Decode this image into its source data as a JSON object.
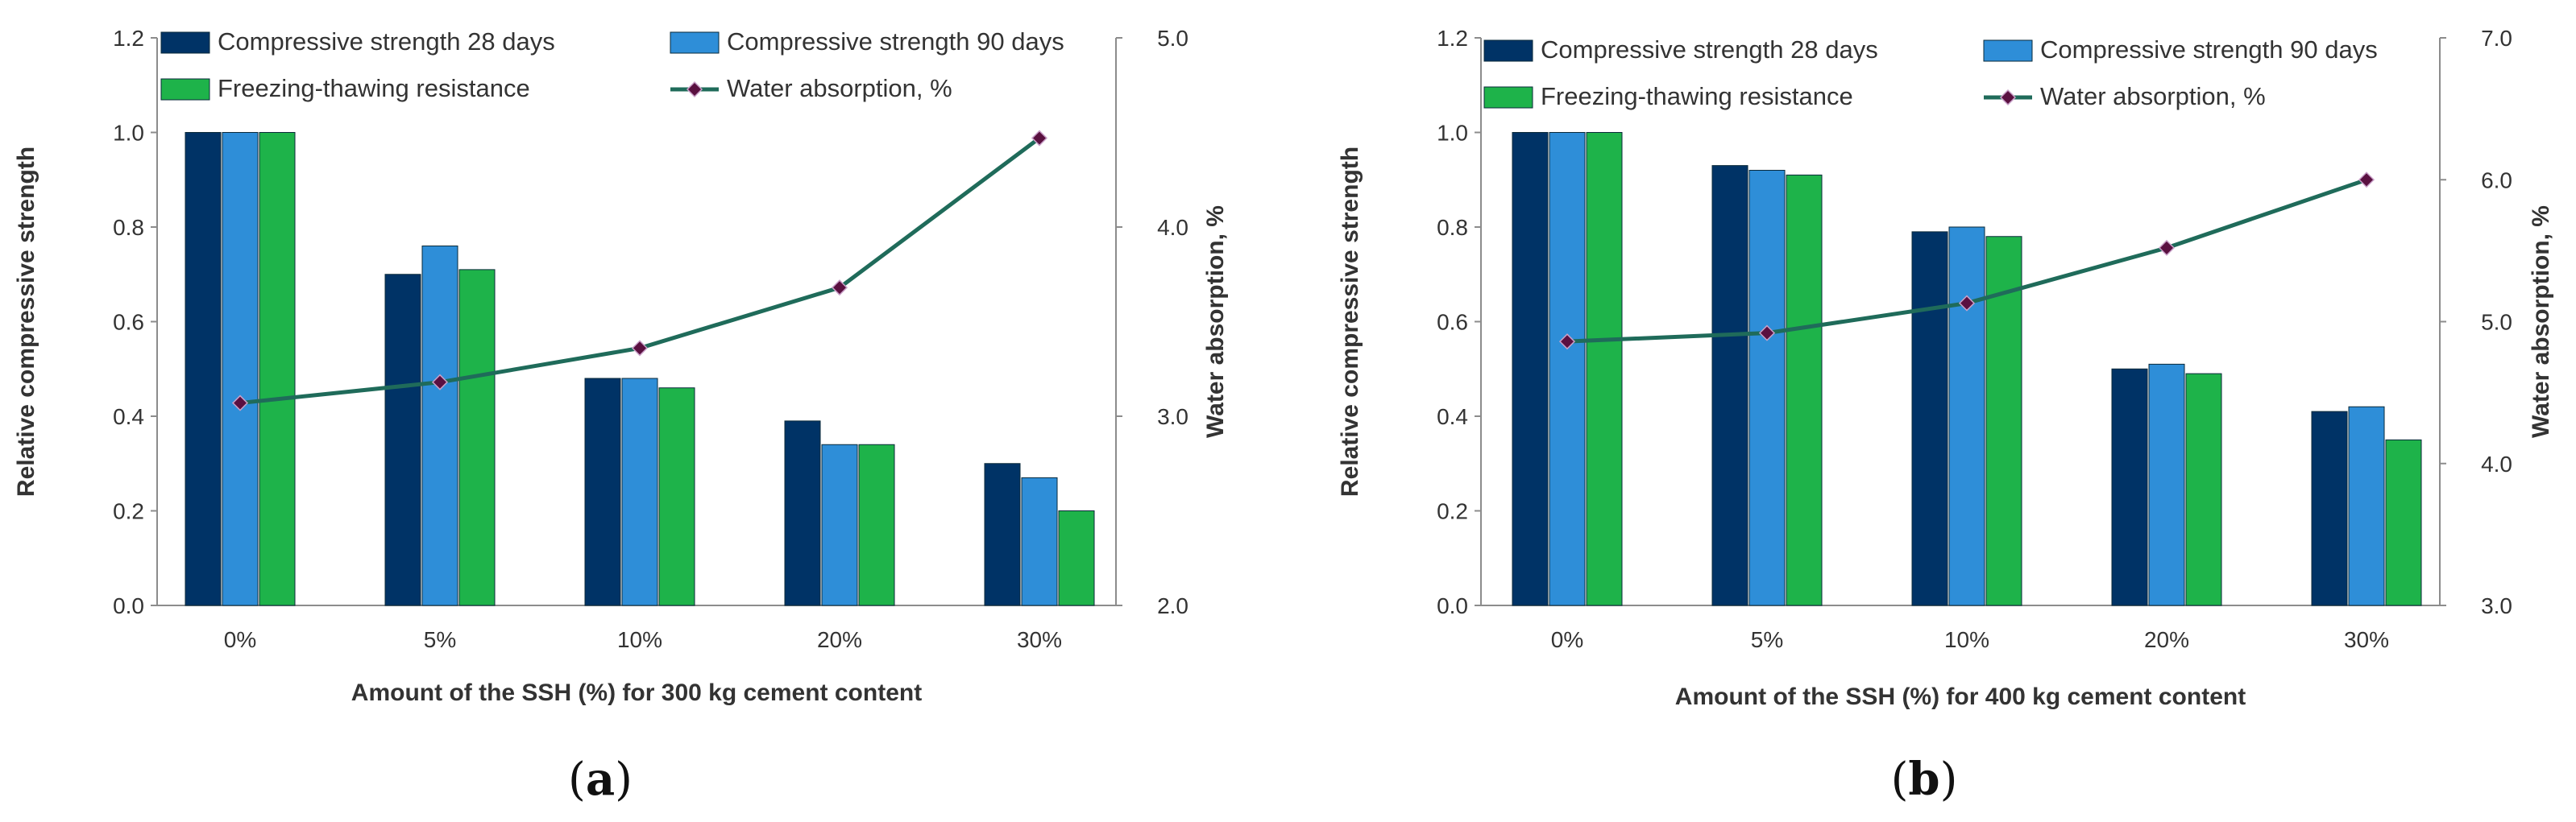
{
  "colors": {
    "cs28": "#003366",
    "cs90": "#2E8ED8",
    "ft": "#1EB34A",
    "water_line": "#1F6B5A",
    "water_marker": "#5A1040"
  },
  "chart_data": [
    {
      "type": "bar",
      "panel_label": "a",
      "categories": [
        "0%",
        "5%",
        "10%",
        "20%",
        "30%"
      ],
      "xlabel": "Amount of the SSH (%) for 300 kg cement content",
      "ylabel": "Relative compressive strength",
      "ylim": [
        0,
        1.2
      ],
      "yticks": [
        "0.0",
        "0.2",
        "0.4",
        "0.6",
        "0.8",
        "1.0",
        "1.2"
      ],
      "y2label": "Water absorption, %",
      "y2lim": [
        2.0,
        5.0
      ],
      "y2ticks": [
        "2.0",
        "3.0",
        "4.0",
        "5.0"
      ],
      "grid": false,
      "legend_position": "top",
      "series": [
        {
          "name": "Compressive strength 28 days",
          "kind": "bar",
          "axis": "left",
          "values": [
            1.0,
            0.7,
            0.48,
            0.39,
            0.3
          ]
        },
        {
          "name": "Compressive strength 90 days",
          "kind": "bar",
          "axis": "left",
          "values": [
            1.0,
            0.76,
            0.48,
            0.34,
            0.27
          ]
        },
        {
          "name": "Freezing-thawing resistance",
          "kind": "bar",
          "axis": "left",
          "values": [
            1.0,
            0.71,
            0.46,
            0.34,
            0.2
          ]
        },
        {
          "name": "Water absorption, %",
          "kind": "line",
          "axis": "right",
          "values": [
            3.07,
            3.18,
            3.36,
            3.68,
            4.47
          ]
        }
      ]
    },
    {
      "type": "bar",
      "panel_label": "b",
      "categories": [
        "0%",
        "5%",
        "10%",
        "20%",
        "30%"
      ],
      "xlabel": "Amount of the SSH (%) for 400 kg cement content",
      "ylabel": "Relative compressive strength",
      "ylim": [
        0,
        1.2
      ],
      "yticks": [
        "0.0",
        "0.2",
        "0.4",
        "0.6",
        "0.8",
        "1.0",
        "1.2"
      ],
      "y2label": "Water absorption, %",
      "y2lim": [
        3.0,
        7.0
      ],
      "y2ticks": [
        "3.0",
        "4.0",
        "5.0",
        "6.0",
        "7.0"
      ],
      "grid": false,
      "legend_position": "top",
      "series": [
        {
          "name": "Compressive strength 28 days",
          "kind": "bar",
          "axis": "left",
          "values": [
            1.0,
            0.93,
            0.79,
            0.5,
            0.41
          ]
        },
        {
          "name": "Compressive strength 90 days",
          "kind": "bar",
          "axis": "left",
          "values": [
            1.0,
            0.92,
            0.8,
            0.51,
            0.42
          ]
        },
        {
          "name": "Freezing-thawing resistance",
          "kind": "bar",
          "axis": "left",
          "values": [
            1.0,
            0.91,
            0.78,
            0.49,
            0.35
          ]
        },
        {
          "name": "Water absorption, %",
          "kind": "line",
          "axis": "right",
          "values": [
            4.86,
            4.92,
            5.13,
            5.52,
            6.0
          ]
        }
      ]
    }
  ]
}
